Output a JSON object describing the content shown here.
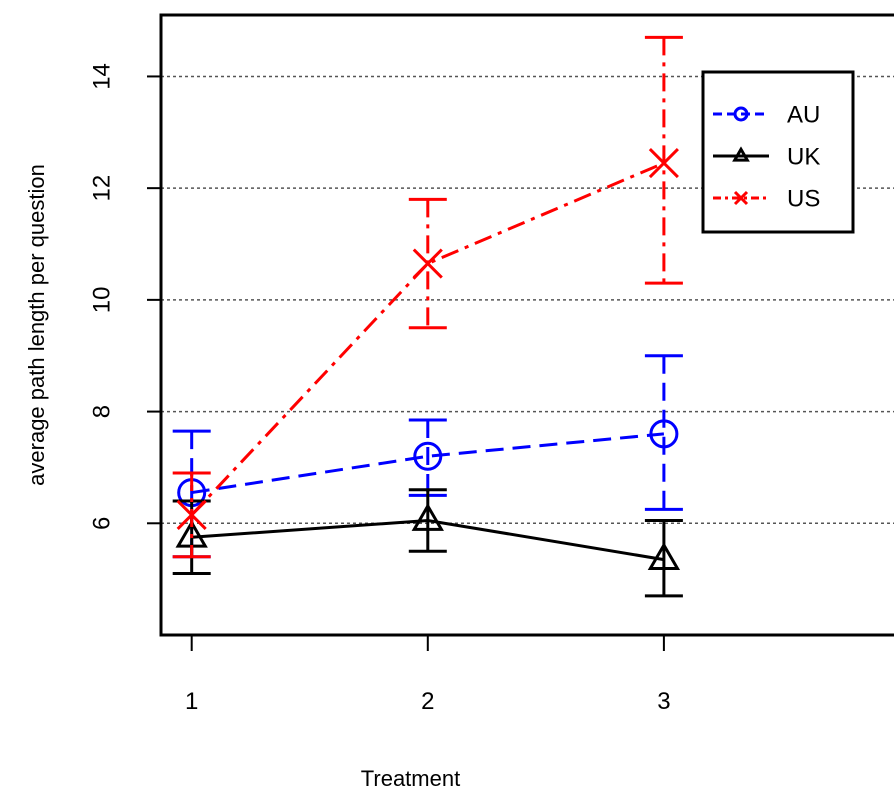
{
  "chart_data": {
    "type": "line",
    "title": "",
    "xlabel": "Treatment",
    "ylabel": "average path length per question",
    "x": [
      1,
      2,
      3
    ],
    "x_tick_labels": [
      "1",
      "2",
      "3"
    ],
    "y_ticks": [
      6,
      8,
      10,
      12,
      14
    ],
    "y_tick_labels": [
      "6",
      "8",
      "10",
      "12",
      "14"
    ],
    "xlim": [
      0.87,
      4.0
    ],
    "ylim": [
      4.0,
      15.1
    ],
    "grid": "horizontal dotted",
    "legend_position": "top-right",
    "series": [
      {
        "name": "AU",
        "color": "#0000ff",
        "line_style": "dashed",
        "marker": "circle",
        "values": [
          6.55,
          7.2,
          7.6
        ],
        "error_low": [
          5.4,
          6.5,
          6.25
        ],
        "error_high": [
          7.65,
          7.85,
          9.0
        ]
      },
      {
        "name": "UK",
        "color": "#000000",
        "line_style": "solid",
        "marker": "triangle",
        "values": [
          5.75,
          6.05,
          5.35
        ],
        "error_low": [
          5.1,
          5.5,
          4.7
        ],
        "error_high": [
          6.4,
          6.6,
          6.05
        ]
      },
      {
        "name": "US",
        "color": "#ff0000",
        "line_style": "dashdot",
        "marker": "x",
        "values": [
          6.15,
          10.65,
          12.45
        ],
        "error_low": [
          5.4,
          9.5,
          10.3
        ],
        "error_high": [
          6.9,
          11.8,
          14.7
        ]
      }
    ]
  }
}
